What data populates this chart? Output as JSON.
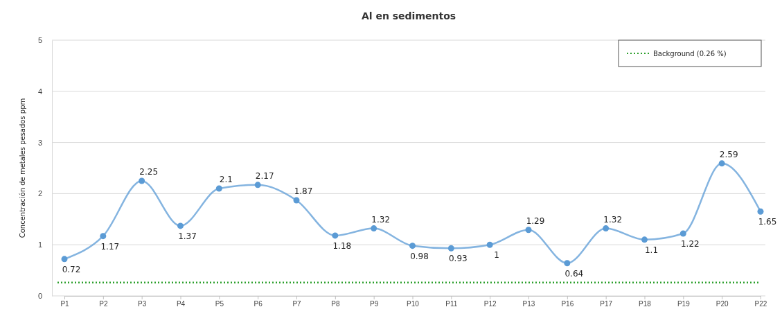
{
  "chart_data": {
    "type": "line",
    "title": "Al en sedimentos",
    "ylabel": "Concentración de metales pesados ppm",
    "categories": [
      "P1",
      "P2",
      "P3",
      "P4",
      "P5",
      "P6",
      "P7",
      "P8",
      "P9",
      "P10",
      "P11",
      "P12",
      "P13",
      "P16",
      "P17",
      "P18",
      "P19",
      "P20",
      "P22"
    ],
    "series": [
      {
        "color": "#5b9bd5",
        "values": [
          0.72,
          1.17,
          2.25,
          1.37,
          2.1,
          2.17,
          1.87,
          1.18,
          1.32,
          0.98,
          0.93,
          1,
          1.29,
          0.64,
          1.32,
          1.1,
          1.22,
          2.59,
          1.65
        ]
      }
    ],
    "ylim": [
      0,
      5
    ],
    "yticks": [
      0,
      1,
      2,
      3,
      4,
      5
    ],
    "grid": "y",
    "marker": "circle",
    "line_style": "solid",
    "data_labels": true,
    "legend": "top right",
    "ref_lines": [
      {
        "axis": "y",
        "value": 0.26,
        "label": "Background (0.26 %)",
        "color": "#2ca02c",
        "line_style": "dotted"
      }
    ]
  }
}
